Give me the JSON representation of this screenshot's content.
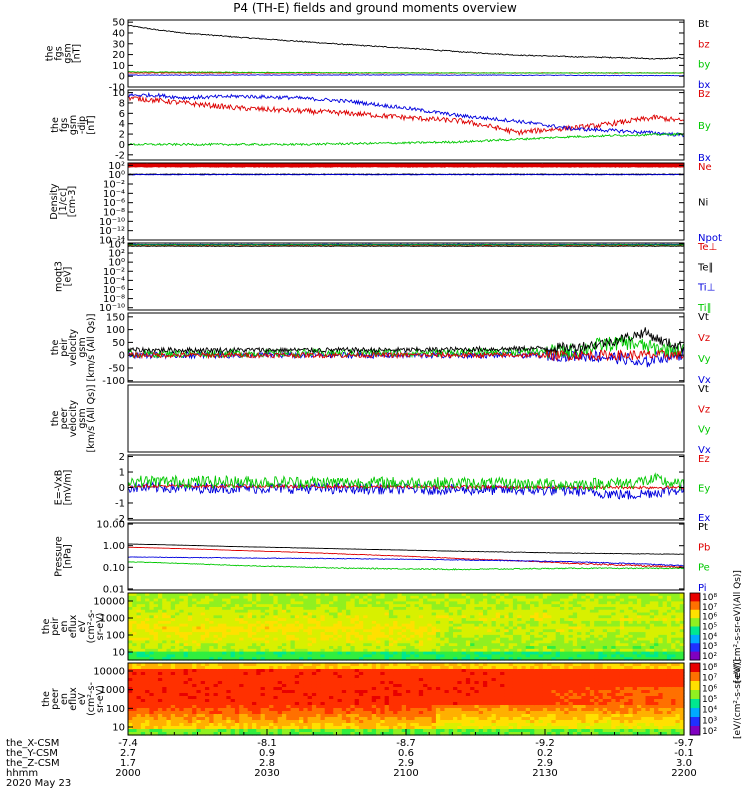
{
  "title": "P4 (TH-E) fields and ground moments overview",
  "colors": {
    "black": "#000000",
    "red": "#dd0000",
    "green": "#00c800",
    "blue": "#0000dd"
  },
  "chart_data": [
    {
      "type": "line",
      "panel": "bgsm",
      "ylabel": [
        "the",
        "fgs",
        "gsm",
        "[nT]"
      ],
      "yticks": [
        "50",
        "40",
        "30",
        "20",
        "10",
        "0",
        "-10"
      ],
      "ylim": [
        -10,
        52
      ],
      "legend": [
        {
          "label": "Bt",
          "color": "#000000"
        },
        {
          "label": "bz",
          "color": "#dd0000"
        },
        {
          "label": "by",
          "color": "#00c800"
        },
        {
          "label": "bx",
          "color": "#0000dd"
        }
      ],
      "series": [
        {
          "name": "Bt",
          "color": "#000000",
          "x": [
            0,
            0.05,
            0.1,
            0.2,
            0.3,
            0.4,
            0.5,
            0.6,
            0.7,
            0.8,
            0.9,
            0.95,
            1
          ],
          "y": [
            47,
            43,
            40,
            36,
            32.5,
            29,
            26,
            22.5,
            19.5,
            18,
            17,
            16,
            17
          ],
          "noise": 0.5
        },
        {
          "name": "bz",
          "color": "#dd0000",
          "x": [
            0,
            1
          ],
          "y": [
            3,
            3
          ],
          "noise": 0.3
        },
        {
          "name": "by",
          "color": "#00c800",
          "x": [
            0,
            0.5,
            1
          ],
          "y": [
            4,
            3,
            3
          ],
          "noise": 0.3
        },
        {
          "name": "bx",
          "color": "#0000dd",
          "x": [
            0,
            0.5,
            1
          ],
          "y": [
            1,
            1.2,
            0.5
          ],
          "noise": 0.3
        }
      ]
    },
    {
      "type": "line",
      "panel": "bgsm-zoom",
      "ylabel": [
        "the",
        "fgs",
        "gsm",
        "-dip",
        "[nT]"
      ],
      "yticks": [
        "10",
        "8",
        "6",
        "4",
        "2",
        "0",
        "-2"
      ],
      "ylim": [
        -3,
        10.5
      ],
      "legend": [
        {
          "label": "Bz",
          "color": "#dd0000"
        },
        {
          "label": "By",
          "color": "#00c800"
        },
        {
          "label": "Bx",
          "color": "#0000dd"
        }
      ],
      "series": [
        {
          "name": "Bz",
          "color": "#dd0000",
          "x": [
            0,
            0.05,
            0.1,
            0.2,
            0.3,
            0.4,
            0.5,
            0.6,
            0.65,
            0.7,
            0.75,
            0.8,
            0.85,
            0.9,
            0.95,
            1
          ],
          "y": [
            9,
            8.5,
            8,
            7,
            6.5,
            6,
            5.2,
            4.5,
            3.5,
            2.3,
            2.8,
            3.2,
            3.7,
            4.5,
            5.2,
            4.5
          ],
          "noise": 0.5
        },
        {
          "name": "Bx",
          "color": "#0000dd",
          "x": [
            0,
            0.05,
            0.1,
            0.2,
            0.3,
            0.4,
            0.5,
            0.6,
            0.7,
            0.8,
            0.85,
            0.9,
            0.95,
            1
          ],
          "y": [
            9.5,
            9.5,
            9,
            9.3,
            9,
            8.3,
            7,
            5.5,
            4.5,
            3,
            2.8,
            2.5,
            2.2,
            1.8
          ],
          "noise": 0.35
        },
        {
          "name": "By",
          "color": "#00c800",
          "x": [
            0,
            0.3,
            0.5,
            0.6,
            0.7,
            0.8,
            0.9,
            1
          ],
          "y": [
            0,
            0,
            0.3,
            0.5,
            1,
            1.5,
            1.8,
            2
          ],
          "noise": 0.2
        }
      ]
    },
    {
      "type": "line",
      "panel": "density",
      "ylabel": [
        "Density",
        "[1/cc]",
        "[cm-3]"
      ],
      "yticks": [
        "10²",
        "10⁰",
        "10⁻²",
        "10⁻⁴",
        "10⁻⁶",
        "10⁻⁸",
        "10⁻¹⁰",
        "10⁻¹²",
        "10⁻¹⁴"
      ],
      "ylim": [
        -14,
        2.5
      ],
      "legend": [
        {
          "label": "Ne",
          "color": "#dd0000"
        },
        {
          "label": "Ni",
          "color": "#000000"
        },
        {
          "label": "Npot",
          "color": "#0000dd"
        }
      ],
      "series": [
        {
          "name": "Ne",
          "color": "#dd0000",
          "x": [
            0,
            1
          ],
          "y": [
            2,
            2
          ],
          "noise": 0.06,
          "thick": true
        },
        {
          "name": "Ni",
          "color": "#000000",
          "x": [
            0,
            1
          ],
          "y": [
            0.1,
            0.1
          ],
          "noise": 0.05
        },
        {
          "name": "Npot",
          "color": "#0000dd",
          "x": [
            0,
            1
          ],
          "y": [
            0,
            0
          ],
          "noise": 0.05
        }
      ]
    },
    {
      "type": "line",
      "panel": "temperature",
      "ylabel": [
        "moqt3",
        "[eV]"
      ],
      "yticks": [
        "10⁴",
        "10²",
        "10⁰",
        "10⁻²",
        "10⁻⁴",
        "10⁻⁶",
        "10⁻⁸",
        "10⁻¹⁰"
      ],
      "ylim": [
        -10.5,
        4.2
      ],
      "legend": [
        {
          "label": "Te⊥",
          "color": "#dd0000"
        },
        {
          "label": "Te∥",
          "color": "#000000"
        },
        {
          "label": "Ti⊥",
          "color": "#0000dd"
        },
        {
          "label": "Ti∥",
          "color": "#00c800"
        }
      ],
      "series": [
        {
          "name": "Te⊥",
          "color": "#dd0000",
          "x": [
            0,
            1
          ],
          "y": [
            3.7,
            3.7
          ],
          "noise": 0.05
        },
        {
          "name": "Te∥",
          "color": "#000000",
          "x": [
            0,
            1
          ],
          "y": [
            3.5,
            3.5
          ],
          "noise": 0.05
        },
        {
          "name": "Ti⊥",
          "color": "#0000dd",
          "x": [
            0,
            1
          ],
          "y": [
            3.9,
            3.9
          ],
          "noise": 0.05
        },
        {
          "name": "Ti∥",
          "color": "#00c800",
          "x": [
            0,
            1
          ],
          "y": [
            3.8,
            3.8
          ],
          "noise": 0.05
        }
      ]
    },
    {
      "type": "line",
      "panel": "ion-velocity",
      "ylabel": [
        "the",
        "peir",
        "velocity",
        "gsm",
        "[km/s (All Qs)]"
      ],
      "yticks": [
        "150",
        "100",
        "50",
        "0",
        "-50",
        "-100"
      ],
      "ylim": [
        -105,
        165
      ],
      "legend": [
        {
          "label": "Vt",
          "color": "#000000"
        },
        {
          "label": "Vz",
          "color": "#dd0000"
        },
        {
          "label": "Vy",
          "color": "#00c800"
        },
        {
          "label": "Vx",
          "color": "#0000dd"
        }
      ],
      "series": [
        {
          "name": "Vx",
          "color": "#0000dd",
          "x": [
            0,
            0.5,
            0.8,
            0.85,
            0.9,
            0.92,
            0.95,
            1
          ],
          "y": [
            0,
            0,
            0,
            -5,
            -15,
            -40,
            -10,
            5
          ],
          "noise": 12
        },
        {
          "name": "Vy",
          "color": "#00c800",
          "x": [
            0,
            0.6,
            0.8,
            0.85,
            0.9,
            0.95,
            1
          ],
          "y": [
            5,
            10,
            15,
            40,
            50,
            25,
            20
          ],
          "noise": 15
        },
        {
          "name": "Vz",
          "color": "#dd0000",
          "x": [
            0,
            1
          ],
          "y": [
            0,
            0
          ],
          "noise": 10
        },
        {
          "name": "Vt",
          "color": "#000000",
          "x": [
            0,
            0.5,
            0.7,
            0.8,
            0.85,
            0.9,
            0.93,
            0.96,
            1
          ],
          "y": [
            20,
            20,
            25,
            30,
            45,
            70,
            90,
            55,
            30
          ],
          "noise": 10
        }
      ]
    },
    {
      "type": "line",
      "panel": "electron-velocity",
      "ylabel": [
        "the",
        "peer",
        "velocity",
        "gsm",
        "[km/s (All Qs)]"
      ],
      "yticks": [],
      "ylim": [
        0,
        1
      ],
      "legend": [
        {
          "label": "Vt",
          "color": "#000000"
        },
        {
          "label": "Vz",
          "color": "#dd0000"
        },
        {
          "label": "Vy",
          "color": "#00c800"
        },
        {
          "label": "Vx",
          "color": "#0000dd"
        }
      ],
      "series": []
    },
    {
      "type": "line",
      "panel": "efield",
      "ylabel": [
        "E=-VxB",
        "[mV/m]"
      ],
      "yticks": [
        "2",
        "1",
        "0",
        "-1",
        "-2"
      ],
      "ylim": [
        -2.1,
        2.1
      ],
      "legend": [
        {
          "label": "Ez",
          "color": "#dd0000"
        },
        {
          "label": "Ey",
          "color": "#00c800"
        },
        {
          "label": "Ex",
          "color": "#0000dd"
        }
      ],
      "series": [
        {
          "name": "Ex",
          "color": "#0000dd",
          "x": [
            0,
            0.5,
            0.8,
            0.9,
            0.95,
            1
          ],
          "y": [
            0,
            -0.1,
            -0.2,
            -0.5,
            -0.3,
            -0.1
          ],
          "noise": 0.35
        },
        {
          "name": "Ez",
          "color": "#dd0000",
          "x": [
            0,
            1
          ],
          "y": [
            0.1,
            0
          ],
          "noise": 0.1
        },
        {
          "name": "Ey",
          "color": "#00c800",
          "x": [
            0,
            0.5,
            0.8,
            0.9,
            0.95,
            1
          ],
          "y": [
            0.4,
            0.3,
            0.2,
            0.3,
            0.5,
            0.1
          ],
          "noise": 0.4
        }
      ]
    },
    {
      "type": "line",
      "panel": "pressure",
      "ylabel": [
        "Pressure",
        "[nPa]"
      ],
      "yticks": [
        "10.00",
        "1.00",
        "0.10",
        "0.01"
      ],
      "ylim": [
        -2.05,
        1.05
      ],
      "log": true,
      "legend": [
        {
          "label": "Pt",
          "color": "#000000"
        },
        {
          "label": "Pb",
          "color": "#dd0000"
        },
        {
          "label": "Pe",
          "color": "#00c800"
        },
        {
          "label": "Pi",
          "color": "#0000dd"
        }
      ],
      "series": [
        {
          "name": "Pt",
          "color": "#000000",
          "x": [
            0,
            0.2,
            0.4,
            0.6,
            0.8,
            1
          ],
          "y": [
            1.2,
            0.9,
            0.7,
            0.55,
            0.45,
            0.4
          ],
          "noise": 0.01
        },
        {
          "name": "Pb",
          "color": "#dd0000",
          "x": [
            0,
            0.2,
            0.4,
            0.6,
            0.8,
            1
          ],
          "y": [
            0.85,
            0.6,
            0.4,
            0.25,
            0.15,
            0.1
          ],
          "noise": 0.01
        },
        {
          "name": "Pi",
          "color": "#0000dd",
          "x": [
            0,
            0.2,
            0.4,
            0.6,
            0.8,
            1
          ],
          "y": [
            0.3,
            0.27,
            0.25,
            0.22,
            0.18,
            0.12
          ],
          "noise": 0.008
        },
        {
          "name": "Pe",
          "color": "#00c800",
          "x": [
            0,
            0.2,
            0.4,
            0.6,
            0.8,
            1
          ],
          "y": [
            0.18,
            0.12,
            0.09,
            0.08,
            0.09,
            0.09
          ],
          "noise": 0.005
        }
      ]
    },
    {
      "type": "heatmap",
      "panel": "ion-eflux",
      "ylabel": [
        "the",
        "peir",
        "en",
        "eflux",
        "eV",
        "(cm²-s-",
        "sr-eV)"
      ],
      "yticks": [
        "10000",
        "1000",
        "100",
        "10"
      ]
    },
    {
      "type": "heatmap",
      "panel": "electron-eflux",
      "ylabel": [
        "the",
        "peer",
        "en",
        "eflux",
        "eV",
        "(cm²-s-",
        "sr-eV)"
      ],
      "yticks": [
        "10000",
        "1000",
        "100",
        "10"
      ]
    }
  ],
  "colorbar_ion": {
    "ticks": [
      "10⁸",
      "10⁷",
      "10⁶",
      "10⁵",
      "10⁴",
      "10³",
      "10²"
    ],
    "label": "[eV/(cm²-s-sr-eV)(All Qs)]"
  },
  "colorbar_electron": {
    "ticks": [
      "10⁸",
      "10⁷",
      "10⁶",
      "10⁵",
      "10⁴",
      "10³",
      "10²"
    ],
    "label": "[eV/(cm²-s-sr-eV)]"
  },
  "x_axis": {
    "row_labels": [
      "the_X-CSM",
      "the_Y-CSM",
      "the_Z-CSM",
      "hhmm",
      "2020 May 23"
    ],
    "ticks": [
      {
        "x": -7.4,
        "y": 2.7,
        "z": 1.7,
        "t": "2000"
      },
      {
        "x": -8.1,
        "y": 0.9,
        "z": 2.8,
        "t": "2030"
      },
      {
        "x": -8.7,
        "y": 0.6,
        "z": 2.9,
        "t": "2100"
      },
      {
        "x": -9.2,
        "y": 0.2,
        "z": 2.9,
        "t": "2130"
      },
      {
        "x": -9.7,
        "y": -0.1,
        "z": 3.0,
        "t": "2200"
      }
    ]
  }
}
